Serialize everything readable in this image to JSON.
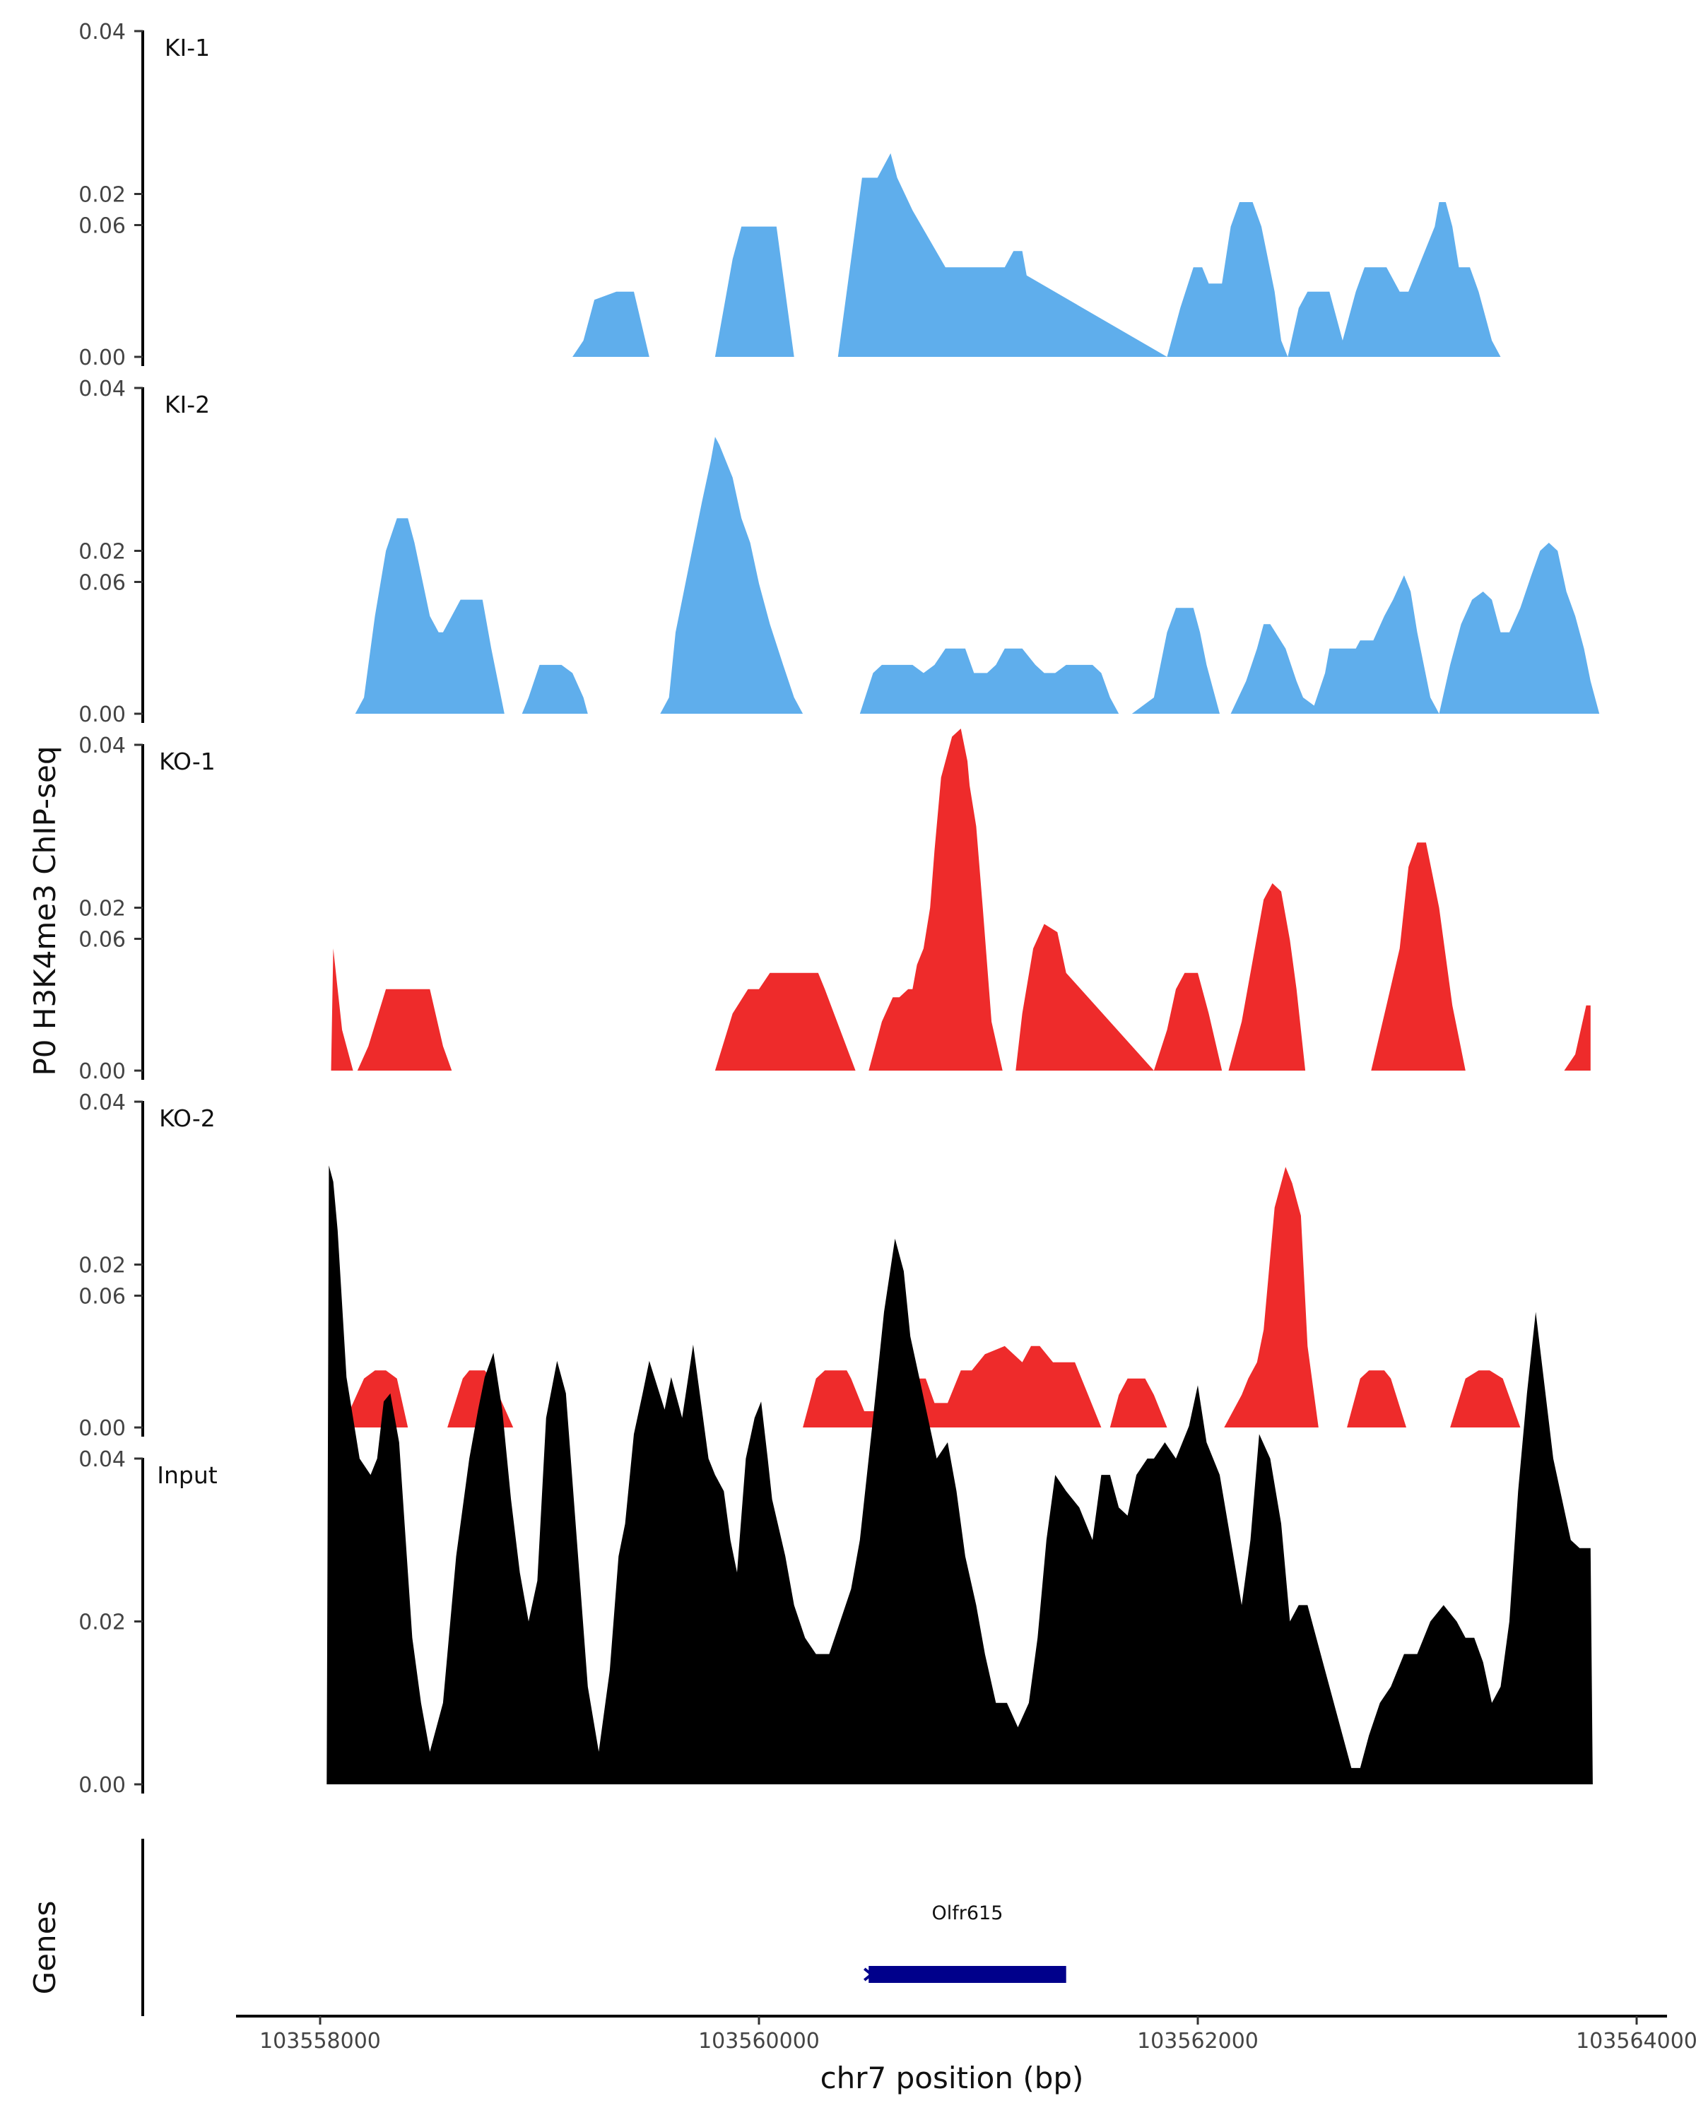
{
  "chart_data": {
    "type": "area",
    "ylabel": "P0 H3K4me3 ChIP-seq",
    "xlabel": "chr7 position (bp)",
    "xlim": [
      103557900,
      103564050
    ],
    "ylim": [
      0,
      0.08
    ],
    "x_ticks": [
      103558000,
      103560000,
      103562000,
      103564000
    ],
    "x_tick_labels": [
      "103558000",
      "103560000",
      "103562000",
      "103564000"
    ],
    "y_ticks": [
      0,
      0.02,
      0.04,
      0.06
    ],
    "y_tick_labels": [
      "0.00",
      "0.02",
      "0.04",
      "0.06"
    ],
    "grid": false,
    "legend": "none",
    "colors": {
      "KI": "#5faeec",
      "KO": "#ee2b2b",
      "Input": "#000000",
      "gene": "#00008b"
    },
    "tracks": [
      {
        "name": "KI-1",
        "color": "#5faeec",
        "x": [
          103559150,
          103559200,
          103559250,
          103559350,
          103559430,
          103559500,
          103559800,
          103559880,
          103559920,
          103560000,
          103560080,
          103560160,
          103560360,
          103560430,
          103560470,
          103560510,
          103560540,
          103560600,
          103560630,
          103560700,
          103560850,
          103560920,
          103560960,
          103561000,
          103561050,
          103561120,
          103561160,
          103561200,
          103561220,
          103561860,
          103561920,
          103561980,
          103562020,
          103562050,
          103562080,
          103562110,
          103562150,
          103562190,
          103562250,
          103562290,
          103562350,
          103562380,
          103562410,
          103562460,
          103562500,
          103562550,
          103562580,
          103562600,
          103562660,
          103562720,
          103562760,
          103562800,
          103562860,
          103562920,
          103562960,
          103563080,
          103563100,
          103563130,
          103563160,
          103563190,
          103563240,
          103563280,
          103563340,
          103563380
        ],
        "y": [
          0,
          0.002,
          0.007,
          0.008,
          0.008,
          0,
          0,
          0.012,
          0.016,
          0.016,
          0.016,
          0,
          0,
          0.014,
          0.022,
          0.022,
          0.022,
          0.025,
          0.022,
          0.018,
          0.011,
          0.011,
          0.011,
          0.011,
          0.011,
          0.011,
          0.013,
          0.013,
          0.01,
          0,
          0.006,
          0.011,
          0.011,
          0.009,
          0.009,
          0.009,
          0.016,
          0.019,
          0.019,
          0.016,
          0.008,
          0.002,
          0,
          0.006,
          0.008,
          0.008,
          0.008,
          0.008,
          0.002,
          0.008,
          0.011,
          0.011,
          0.011,
          0.008,
          0.008,
          0.016,
          0.019,
          0.019,
          0.016,
          0.011,
          0.011,
          0.008,
          0.002,
          0
        ],
        "label": "KI-1"
      },
      {
        "name": "KI-2",
        "color": "#5faeec",
        "x": [
          103558160,
          103558200,
          103558250,
          103558300,
          103558350,
          103558400,
          103558430,
          103558500,
          103558540,
          103558560,
          103558600,
          103558640,
          103558680,
          103558740,
          103558780,
          103558840,
          103558880,
          103558920,
          103558950,
          103559000,
          103559100,
          103559150,
          103559200,
          103559220,
          103559550,
          103559590,
          103559620,
          103559680,
          103559740,
          103559780,
          103559800,
          103559820,
          103559850,
          103559880,
          103559920,
          103559960,
          103560000,
          103560050,
          103560110,
          103560160,
          103560200,
          103560240,
          103560460,
          103560520,
          103560560,
          103560620,
          103560700,
          103560750,
          103560800,
          103560850,
          103560900,
          103560940,
          103560980,
          103561040,
          103561080,
          103561120,
          103561200,
          103561260,
          103561300,
          103561350,
          103561400,
          103561440,
          103561520,
          103561560,
          103561600,
          103561640,
          103561680,
          103561700,
          103561800,
          103561860,
          103561900,
          103561940,
          103561980,
          103562010,
          103562040,
          103562100,
          103562150,
          103562220,
          103562270,
          103562300,
          103562330,
          103562400,
          103562450,
          103562480,
          103562530,
          103562580,
          103562600,
          103562700,
          103562720,
          103562740,
          103562780,
          103562800,
          103562850,
          103562890,
          103562940,
          103562970,
          103563000,
          103563030,
          103563060,
          103563100,
          103563150,
          103563200,
          103563250,
          103563300,
          103563340,
          103563380,
          103563420,
          103563470,
          103563520,
          103563560,
          103563600,
          103563640,
          103563680,
          103563720,
          103563760,
          103563790,
          103563830
        ],
        "y": [
          0,
          0.002,
          0.012,
          0.02,
          0.024,
          0.024,
          0.021,
          0.012,
          0.01,
          0.01,
          0.012,
          0.014,
          0.014,
          0.014,
          0.008,
          0,
          0,
          0,
          0.002,
          0.006,
          0.006,
          0.005,
          0.002,
          0,
          0,
          0.002,
          0.01,
          0.018,
          0.026,
          0.031,
          0.034,
          0.033,
          0.031,
          0.029,
          0.024,
          0.021,
          0.016,
          0.011,
          0.006,
          0.002,
          0,
          0,
          0,
          0.005,
          0.006,
          0.006,
          0.006,
          0.005,
          0.006,
          0.008,
          0.008,
          0.008,
          0.005,
          0.005,
          0.006,
          0.008,
          0.008,
          0.006,
          0.005,
          0.005,
          0.006,
          0.006,
          0.006,
          0.005,
          0.002,
          0,
          0,
          0,
          0.002,
          0.01,
          0.013,
          0.013,
          0.013,
          0.01,
          0.006,
          0,
          0,
          0.004,
          0.008,
          0.011,
          0.011,
          0.008,
          0.004,
          0.002,
          0.001,
          0.005,
          0.008,
          0.008,
          0.008,
          0.009,
          0.009,
          0.009,
          0.012,
          0.014,
          0.017,
          0.015,
          0.01,
          0.006,
          0.002,
          0,
          0.006,
          0.011,
          0.014,
          0.015,
          0.014,
          0.01,
          0.01,
          0.013,
          0.017,
          0.02,
          0.021,
          0.02,
          0.015,
          0.012,
          0.008,
          0.004,
          0
        ],
        "label": "KI-2"
      },
      {
        "name": "KO-1",
        "color": "#ee2b2b",
        "x": [
          103558050,
          103558060,
          103558080,
          103558100,
          103558150,
          103558170,
          103558220,
          103558300,
          103558380,
          103558500,
          103558560,
          103558600,
          103558640,
          103559800,
          103559880,
          103559950,
          103560000,
          103560050,
          103560200,
          103560230,
          103560270,
          103560300,
          103560370,
          103560440,
          103560500,
          103560560,
          103560610,
          103560640,
          103560680,
          103560700,
          103560720,
          103560750,
          103560780,
          103560800,
          103560830,
          103560880,
          103560920,
          103560950,
          103560960,
          103560990,
          103561020,
          103561060,
          103561110,
          103561170,
          103561200,
          103561250,
          103561300,
          103561360,
          103561400,
          103561800,
          103561860,
          103561900,
          103561940,
          103562000,
          103562050,
          103562110,
          103562140,
          103562200,
          103562240,
          103562300,
          103562340,
          103562380,
          103562420,
          103562450,
          103562490,
          103562790,
          103562860,
          103562920,
          103562960,
          103563000,
          103563040,
          103563100,
          103563160,
          103563220,
          103563670,
          103563720,
          103563770,
          103563790
        ],
        "y": [
          0,
          0.015,
          0.01,
          0.005,
          0,
          0,
          0.003,
          0.01,
          0.01,
          0.01,
          0.003,
          0,
          0,
          0,
          0.007,
          0.01,
          0.01,
          0.012,
          0.012,
          0.012,
          0.012,
          0.01,
          0.005,
          0,
          0,
          0.006,
          0.009,
          0.009,
          0.01,
          0.01,
          0.013,
          0.015,
          0.02,
          0.027,
          0.036,
          0.041,
          0.042,
          0.038,
          0.035,
          0.03,
          0.02,
          0.006,
          0,
          0,
          0.007,
          0.015,
          0.018,
          0.017,
          0.012,
          0,
          0.005,
          0.01,
          0.012,
          0.012,
          0.007,
          0,
          0,
          0.006,
          0.012,
          0.021,
          0.023,
          0.022,
          0.016,
          0.01,
          0,
          0,
          0.008,
          0.015,
          0.025,
          0.028,
          0.028,
          0.02,
          0.008,
          0,
          0,
          0.002,
          0.008,
          0.008
        ],
        "label": "KO-1"
      },
      {
        "name": "KO-2",
        "color": "#ee2b2b",
        "x": [
          103558100,
          103558200,
          103558250,
          103558300,
          103558350,
          103558400,
          103558580,
          103558650,
          103558680,
          103558750,
          103558780,
          103558880,
          103560200,
          103560260,
          103560300,
          103560400,
          103560420,
          103560480,
          103560530,
          103560580,
          103560620,
          103560670,
          103560720,
          103560760,
          103560800,
          103560860,
          103560920,
          103560970,
          103561030,
          103561120,
          103561160,
          103561200,
          103561240,
          103561280,
          103561340,
          103561440,
          103561500,
          103561560,
          103561600,
          103561640,
          103561680,
          103561720,
          103561760,
          103561800,
          103561860,
          103561900,
          103561940,
          103562120,
          103562200,
          103562230,
          103562270,
          103562300,
          103562350,
          103562400,
          103562430,
          103562470,
          103562500,
          103562550,
          103562580,
          103562680,
          103562740,
          103562780,
          103562850,
          103562880,
          103562950,
          103563020,
          103563050,
          103563150,
          103563220,
          103563280,
          103563330,
          103563390,
          103563470,
          103563540
        ],
        "y": [
          0,
          0.006,
          0.007,
          0.007,
          0.006,
          0,
          0,
          0.006,
          0.007,
          0.007,
          0.006,
          0,
          0,
          0.006,
          0.007,
          0.007,
          0.006,
          0.002,
          0.002,
          0.005,
          0.006,
          0.006,
          0.006,
          0.006,
          0.003,
          0.003,
          0.007,
          0.007,
          0.009,
          0.01,
          0.009,
          0.008,
          0.01,
          0.01,
          0.008,
          0.008,
          0.004,
          0,
          0,
          0.004,
          0.006,
          0.006,
          0.006,
          0.004,
          0,
          0,
          0,
          0,
          0.004,
          0.006,
          0.008,
          0.012,
          0.027,
          0.032,
          0.03,
          0.026,
          0.01,
          0,
          0,
          0,
          0.006,
          0.007,
          0.007,
          0.006,
          0,
          0,
          0,
          0,
          0.006,
          0.007,
          0.007,
          0.006,
          0,
          0
        ],
        "label": "KO-2"
      },
      {
        "name": "Input",
        "color": "#000000",
        "x": [
          103558030,
          103558040,
          103558060,
          103558080,
          103558120,
          103558180,
          103558230,
          103558260,
          103558290,
          103558320,
          103558360,
          103558390,
          103558420,
          103558460,
          103558500,
          103558560,
          103558620,
          103558680,
          103558720,
          103558750,
          103558790,
          103558830,
          103558870,
          103558910,
          103558950,
          103558990,
          103559030,
          103559080,
          103559120,
          103559170,
          103559220,
          103559270,
          103559320,
          103559360,
          103559390,
          103559430,
          103559470,
          103559500,
          103559570,
          103559600,
          103559650,
          103559700,
          103559740,
          103559770,
          103559800,
          103559840,
          103559870,
          103559900,
          103559940,
          103559980,
          103560010,
          103560040,
          103560060,
          103560120,
          103560160,
          103560210,
          103560260,
          103560320,
          103560370,
          103560420,
          103560460,
          103560520,
          103560570,
          103560620,
          103560660,
          103560690,
          103560730,
          103560770,
          103560810,
          103560860,
          103560900,
          103560940,
          103560990,
          103561030,
          103561080,
          103561130,
          103561180,
          103561230,
          103561270,
          103561310,
          103561350,
          103561400,
          103561460,
          103561520,
          103561560,
          103561600,
          103561640,
          103561680,
          103561720,
          103561770,
          103561800,
          103561850,
          103561900,
          103561960,
          103562000,
          103562040,
          103562100,
          103562150,
          103562200,
          103562240,
          103562280,
          103562330,
          103562380,
          103562420,
          103562460,
          103562500,
          103562540,
          103562580,
          103562620,
          103562660,
          103562700,
          103562740,
          103562780,
          103562830,
          103562880,
          103562940,
          103563000,
          103563060,
          103563120,
          103563180,
          103563220,
          103563260,
          103563300,
          103563340,
          103563380,
          103563420,
          103563460,
          103563500,
          103563540,
          103563580,
          103563620,
          103563660,
          103563700,
          103563740,
          103563770,
          103563790,
          103563800
        ],
        "y": [
          0,
          0.076,
          0.074,
          0.068,
          0.05,
          0.04,
          0.038,
          0.04,
          0.047,
          0.048,
          0.042,
          0.03,
          0.018,
          0.01,
          0.004,
          0.01,
          0.028,
          0.04,
          0.046,
          0.05,
          0.053,
          0.046,
          0.035,
          0.026,
          0.02,
          0.025,
          0.045,
          0.052,
          0.048,
          0.03,
          0.012,
          0.004,
          0.014,
          0.028,
          0.032,
          0.043,
          0.048,
          0.052,
          0.046,
          0.05,
          0.045,
          0.054,
          0.046,
          0.04,
          0.038,
          0.036,
          0.03,
          0.026,
          0.04,
          0.045,
          0.047,
          0.04,
          0.035,
          0.028,
          0.022,
          0.018,
          0.016,
          0.016,
          0.02,
          0.024,
          0.03,
          0.045,
          0.058,
          0.067,
          0.063,
          0.055,
          0.05,
          0.045,
          0.04,
          0.042,
          0.036,
          0.028,
          0.022,
          0.016,
          0.01,
          0.01,
          0.007,
          0.01,
          0.018,
          0.03,
          0.038,
          0.036,
          0.034,
          0.03,
          0.038,
          0.038,
          0.034,
          0.033,
          0.038,
          0.04,
          0.04,
          0.042,
          0.04,
          0.044,
          0.049,
          0.042,
          0.038,
          0.03,
          0.022,
          0.03,
          0.043,
          0.04,
          0.032,
          0.02,
          0.022,
          0.022,
          0.018,
          0.014,
          0.01,
          0.006,
          0.002,
          0.002,
          0.006,
          0.01,
          0.012,
          0.016,
          0.016,
          0.02,
          0.022,
          0.02,
          0.018,
          0.018,
          0.015,
          0.01,
          0.012,
          0.02,
          0.036,
          0.048,
          0.058,
          0.049,
          0.04,
          0.035,
          0.03,
          0.029,
          0.029,
          0.029,
          0
        ],
        "label": "Input"
      }
    ],
    "genes": {
      "title": "Genes",
      "items": [
        {
          "name": "Olfr615",
          "start": 103560500,
          "end": 103561400,
          "strand": "-"
        }
      ]
    }
  }
}
